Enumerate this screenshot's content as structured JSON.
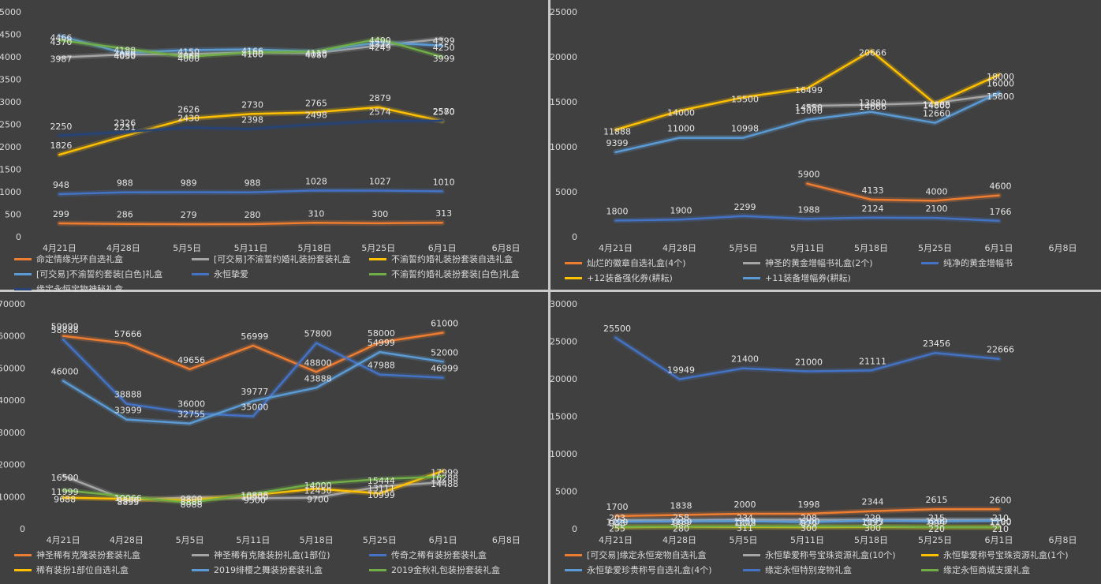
{
  "colors": {
    "orange": "#ed7d31",
    "gray": "#a5a5a5",
    "gold": "#ffc000",
    "lightblue": "#5b9bd5",
    "blue": "#4472c4",
    "green": "#70ad47",
    "navy": "#264478",
    "panel_bg": "#404040",
    "axis_text": "#d9d9d9"
  },
  "chart_data": [
    {
      "type": "line",
      "categories": [
        "4月21日",
        "4月28日",
        "5月5日",
        "5月11日",
        "5月18日",
        "5月25日",
        "6月1日",
        "6月8日"
      ],
      "ylim": [
        0,
        5000
      ],
      "ytick_labels": [
        "0",
        "500",
        "1000",
        "1500",
        "2000",
        "2500",
        "3000",
        "3500",
        "4000",
        "4500",
        "5000"
      ],
      "legend_position": "bottom",
      "series": [
        {
          "name": "命定情缘光环自选礼盒",
          "color": "#ed7d31",
          "values": [
            299,
            286,
            279,
            280,
            310,
            300,
            313,
            null
          ]
        },
        {
          "name": "[可交易]不渝誓约婚礼装扮套装礼盒",
          "color": "#a5a5a5",
          "values": [
            3987,
            4050,
            4060,
            4100,
            4080,
            4249,
            4399,
            null
          ]
        },
        {
          "name": "不渝誓约婚礼装扮套装自选礼盒",
          "color": "#ffc000",
          "values": [
            1826,
            2231,
            2626,
            2730,
            2765,
            2879,
            2570,
            null
          ]
        },
        {
          "name": "[可交易]不渝誓约套装[白色]礼盒",
          "color": "#5b9bd5",
          "values": [
            4466,
            4089,
            4150,
            4166,
            4118,
            4322,
            4250,
            null
          ]
        },
        {
          "name": "永恒挚爱",
          "color": "#4472c4",
          "values": [
            948,
            988,
            989,
            988,
            1028,
            1027,
            1010,
            null
          ]
        },
        {
          "name": "不渝誓约婚礼装扮套装[白色]礼盒",
          "color": "#70ad47",
          "values": [
            4370,
            4188,
            4000,
            4100,
            4113,
            4400,
            3999,
            null
          ]
        },
        {
          "name": "缘定永恒宝物神秘礼盒",
          "color": "#264478",
          "values": [
            2250,
            2326,
            2430,
            2398,
            2498,
            2574,
            2580,
            null
          ]
        }
      ]
    },
    {
      "type": "line",
      "categories": [
        "4月21日",
        "4月28日",
        "5月5日",
        "5月11日",
        "5月18日",
        "5月25日",
        "6月1日",
        "6月8日"
      ],
      "ylim": [
        0,
        25000
      ],
      "ytick_labels": [
        "0",
        "5000",
        "10000",
        "15000",
        "20000",
        "25000"
      ],
      "legend_position": "bottom",
      "series": [
        {
          "name": "灿烂的徽章自选礼盒(4个)",
          "color": "#ed7d31",
          "values": [
            null,
            null,
            null,
            5900,
            4133,
            4000,
            4600,
            null
          ]
        },
        {
          "name": "神圣的黄金增幅书礼盒(2个)",
          "color": "#a5a5a5",
          "values": [
            null,
            null,
            null,
            14550,
            14666,
            14888,
            15800,
            null
          ]
        },
        {
          "name": "纯净的黄金增幅书",
          "color": "#4472c4",
          "values": [
            1800,
            1900,
            2299,
            1988,
            2124,
            2100,
            1766,
            null
          ]
        },
        {
          "name": "+12装备强化券(耕耘)",
          "color": "#ffc000",
          "values": [
            11888,
            14000,
            15500,
            16499,
            20666,
            14800,
            18000,
            null
          ]
        },
        {
          "name": "+11装备增幅券(耕耘)",
          "color": "#5b9bd5",
          "values": [
            9399,
            11000,
            10998,
            13000,
            13880,
            12660,
            16000,
            null
          ]
        }
      ]
    },
    {
      "type": "line",
      "categories": [
        "4月21日",
        "4月28日",
        "5月5日",
        "5月11日",
        "5月18日",
        "5月25日",
        "6月1日",
        "6月8日"
      ],
      "ylim": [
        0,
        70000
      ],
      "ytick_labels": [
        "0",
        "10000",
        "20000",
        "30000",
        "40000",
        "50000",
        "60000",
        "70000"
      ],
      "legend_position": "bottom",
      "series": [
        {
          "name": "神圣稀有克隆装扮套装礼盒",
          "color": "#ed7d31",
          "values": [
            59999,
            57666,
            49656,
            56999,
            48800,
            58000,
            61000,
            null
          ]
        },
        {
          "name": "神圣稀有克隆装扮礼盒(1部位)",
          "color": "#a5a5a5",
          "values": [
            16500,
            8855,
            9800,
            9500,
            9700,
            13111,
            14488,
            null
          ]
        },
        {
          "name": "传奇之稀有装扮套装礼盒",
          "color": "#4472c4",
          "values": [
            58888,
            38888,
            36000,
            35000,
            57800,
            47988,
            46999,
            null
          ]
        },
        {
          "name": "稀有装扮1部位自选礼盒",
          "color": "#ffc000",
          "values": [
            9688,
            9300,
            8888,
            10500,
            12450,
            10999,
            17999,
            null
          ]
        },
        {
          "name": "2019绯樱之舞装扮套装礼盒",
          "color": "#5b9bd5",
          "values": [
            46000,
            33999,
            32755,
            39777,
            43888,
            54999,
            52000,
            null
          ]
        },
        {
          "name": "2019金秋礼包装扮套装礼盒",
          "color": "#70ad47",
          "values": [
            11999,
            10066,
            8088,
            10888,
            14000,
            15444,
            16288,
            null
          ]
        }
      ]
    },
    {
      "type": "line",
      "categories": [
        "4月21日",
        "4月28日",
        "5月5日",
        "5月11日",
        "5月18日",
        "5月25日",
        "6月1日",
        "6月8日"
      ],
      "ylim": [
        0,
        30000
      ],
      "ytick_labels": [
        "0",
        "5000",
        "10000",
        "15000",
        "20000",
        "25000",
        "30000"
      ],
      "legend_position": "bottom",
      "series": [
        {
          "name": "[可交易]缘定永恒宠物自选礼盒",
          "color": "#ed7d31",
          "values": [
            1700,
            1838,
            2000,
            1998,
            2344,
            2615,
            2600,
            null
          ]
        },
        {
          "name": "永恒挚爱称号宝珠资源礼盒(10个)",
          "color": "#a5a5a5",
          "values": [
            1129,
            1139,
            1219,
            1200,
            1175,
            1209,
            1190,
            null
          ]
        },
        {
          "name": "永恒挚爱称号宝珠资源礼盒(1个)",
          "color": "#ffc000",
          "values": [
            203,
            258,
            234,
            208,
            229,
            215,
            210,
            null
          ]
        },
        {
          "name": "永恒挚爱珍贵称号自选礼盒(4个)",
          "color": "#5b9bd5",
          "values": [
            948,
            999,
            1008,
            879,
            1097,
            999,
            1100,
            null
          ]
        },
        {
          "name": "缘定永恒特别宠物礼盒",
          "color": "#4472c4",
          "values": [
            25500,
            19949,
            21400,
            21000,
            21111,
            23456,
            22666,
            null
          ]
        },
        {
          "name": "缘定永恒商城支援礼盒",
          "color": "#70ad47",
          "values": [
            255,
            280,
            311,
            300,
            300,
            220,
            210,
            null
          ]
        }
      ]
    }
  ]
}
